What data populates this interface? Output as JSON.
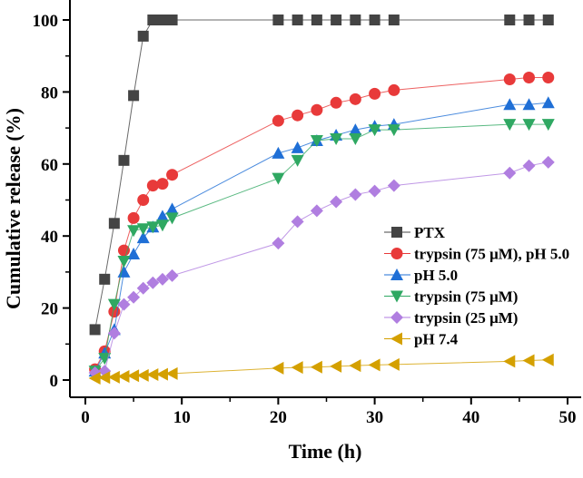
{
  "chart_data": {
    "type": "line",
    "xlabel": "Time (h)",
    "ylabel": "Cumulative release (%)",
    "xlim": [
      -1.6,
      51.5
    ],
    "ylim": [
      -5,
      105
    ],
    "xticks": [
      0,
      10,
      20,
      30,
      40,
      50
    ],
    "yticks": [
      0,
      20,
      40,
      60,
      80,
      100
    ],
    "legend_position": "lower-right",
    "x": [
      1,
      2,
      3,
      4,
      5,
      6,
      7,
      8,
      9,
      20,
      22,
      24,
      26,
      28,
      30,
      32,
      44,
      46,
      48
    ],
    "series": [
      {
        "name": "PTX",
        "color": "#444444",
        "marker": "square",
        "values": [
          14,
          28,
          43.5,
          61,
          79,
          95.5,
          100,
          100,
          100,
          100,
          100,
          100,
          100,
          100,
          100,
          100,
          100,
          100,
          100
        ]
      },
      {
        "name": "trypsin (75 μM), pH 5.0",
        "color": "#e83a3a",
        "marker": "circle",
        "values": [
          3,
          8,
          19,
          36,
          45,
          50,
          54,
          54.5,
          57,
          72,
          73.5,
          75,
          77,
          78,
          79.5,
          80.5,
          83.5,
          84,
          84
        ]
      },
      {
        "name": "pH 5.0",
        "color": "#1f6fd6",
        "marker": "triangle-up",
        "values": [
          2.5,
          7.5,
          14,
          30,
          35,
          39.5,
          42.5,
          45.5,
          47.5,
          63,
          64.5,
          66.5,
          68,
          69.5,
          70.5,
          71,
          76.5,
          76.5,
          77
        ]
      },
      {
        "name": "trypsin (75 μM)",
        "color": "#2fa862",
        "marker": "triangle-down",
        "values": [
          2.5,
          6,
          21,
          33,
          41.5,
          42,
          42.5,
          43,
          45,
          56,
          61,
          66.5,
          67,
          67,
          69.5,
          69.5,
          71,
          71,
          71
        ]
      },
      {
        "name": "trypsin (25 μM)",
        "color": "#b07ee0",
        "marker": "diamond",
        "values": [
          2,
          2.5,
          13,
          21,
          23,
          25.5,
          27,
          28,
          29,
          38,
          44,
          47,
          49.5,
          51.5,
          52.5,
          54,
          57.5,
          59.5,
          60.5
        ]
      },
      {
        "name": "pH 7.4",
        "color": "#d4a000",
        "marker": "triangle-left",
        "values": [
          0.5,
          0.7,
          0.8,
          1,
          1.2,
          1.3,
          1.5,
          1.6,
          1.8,
          3.3,
          3.5,
          3.6,
          3.8,
          4,
          4.2,
          4.3,
          5.2,
          5.4,
          5.6
        ]
      }
    ]
  }
}
